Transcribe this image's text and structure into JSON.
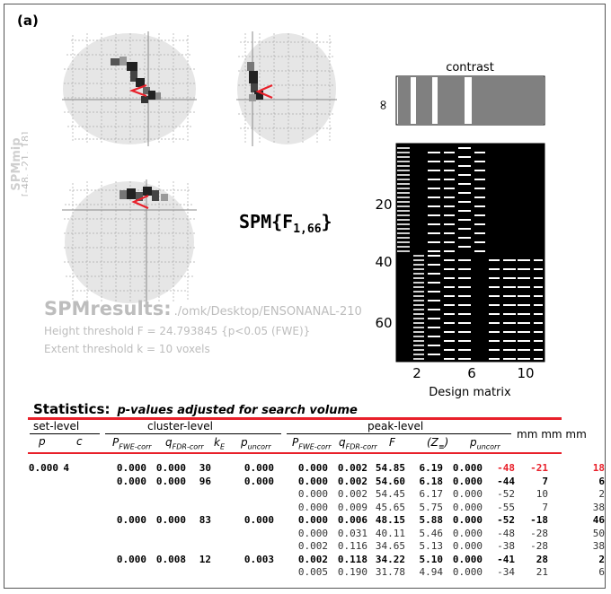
{
  "panel_label": "(a)",
  "spm_side_label": "SPMmip",
  "coord_label": "[-48, -21, 18]",
  "f_stat": {
    "prefix": "SPM{F",
    "subscript": "1,66",
    "suffix": "}"
  },
  "results": {
    "title": "SPMresults:",
    "path": "./omk/Desktop/ENSONANAL-210",
    "height_threshold": "Height threshold F = 24.793845  {p<0.05 (FWE)}",
    "extent_threshold": "Extent threshold k = 10 voxels"
  },
  "design_matrix": {
    "contrast_label": "contrast",
    "inf_label": "∞",
    "y_ticks": [
      "20",
      "40",
      "60"
    ],
    "x_ticks": [
      "2",
      "6",
      "10"
    ],
    "xlabel": "Design matrix"
  },
  "statistics": {
    "title": "Statistics:",
    "subtitle": "p-values adjusted for search volume",
    "group_headers": {
      "set": "set-level",
      "cluster": "cluster-level",
      "peak": "peak-level",
      "mm": "mm mm mm"
    },
    "col_headers": {
      "p": "p",
      "c": "c",
      "fwe": "P",
      "fwe_sub": "FWE-corr",
      "fdr": "q",
      "fdr_sub": "FDR-corr",
      "ke": "k",
      "ke_sub": "E",
      "unc": "p",
      "unc_sub": "uncorr",
      "pfwe": "P",
      "pfwe_sub": "FWE-corr",
      "pfdr": "q",
      "pfdr_sub": "FDR-corr",
      "f": "F",
      "z": "(Z",
      "z_sub": "≡",
      "z_close": ")",
      "punc": "p",
      "punc_sub": "uncorr"
    },
    "rows": [
      {
        "set_p": "0.000",
        "set_c": "4",
        "c_fwe": "0.000",
        "c_fdr": "0.000",
        "ke": "30",
        "c_unc": "0.000",
        "p_fwe": "0.000",
        "p_fdr": "0.002",
        "f": "54.85",
        "z": "6.19",
        "p_unc": "0.000",
        "x": "-48",
        "y": "-21",
        "zz": "18",
        "level": "cluster",
        "red": true
      },
      {
        "set_p": "",
        "set_c": "",
        "c_fwe": "0.000",
        "c_fdr": "0.000",
        "ke": "96",
        "c_unc": "0.000",
        "p_fwe": "0.000",
        "p_fdr": "0.002",
        "f": "54.60",
        "z": "6.18",
        "p_unc": "0.000",
        "x": "-44",
        "y": "7",
        "zz": "6",
        "level": "cluster",
        "red": false
      },
      {
        "set_p": "",
        "set_c": "",
        "c_fwe": "",
        "c_fdr": "",
        "ke": "",
        "c_unc": "",
        "p_fwe": "0.000",
        "p_fdr": "0.002",
        "f": "54.45",
        "z": "6.17",
        "p_unc": "0.000",
        "x": "-52",
        "y": "10",
        "zz": "2",
        "level": "peak",
        "red": false
      },
      {
        "set_p": "",
        "set_c": "",
        "c_fwe": "",
        "c_fdr": "",
        "ke": "",
        "c_unc": "",
        "p_fwe": "0.000",
        "p_fdr": "0.009",
        "f": "45.65",
        "z": "5.75",
        "p_unc": "0.000",
        "x": "-55",
        "y": "7",
        "zz": "38",
        "level": "peak",
        "red": false
      },
      {
        "set_p": "",
        "set_c": "",
        "c_fwe": "0.000",
        "c_fdr": "0.000",
        "ke": "83",
        "c_unc": "0.000",
        "p_fwe": "0.000",
        "p_fdr": "0.006",
        "f": "48.15",
        "z": "5.88",
        "p_unc": "0.000",
        "x": "-52",
        "y": "-18",
        "zz": "46",
        "level": "cluster",
        "red": false
      },
      {
        "set_p": "",
        "set_c": "",
        "c_fwe": "",
        "c_fdr": "",
        "ke": "",
        "c_unc": "",
        "p_fwe": "0.000",
        "p_fdr": "0.031",
        "f": "40.11",
        "z": "5.46",
        "p_unc": "0.000",
        "x": "-48",
        "y": "-28",
        "zz": "50",
        "level": "peak",
        "red": false
      },
      {
        "set_p": "",
        "set_c": "",
        "c_fwe": "",
        "c_fdr": "",
        "ke": "",
        "c_unc": "",
        "p_fwe": "0.002",
        "p_fdr": "0.116",
        "f": "34.65",
        "z": "5.13",
        "p_unc": "0.000",
        "x": "-38",
        "y": "-28",
        "zz": "38",
        "level": "peak",
        "red": false
      },
      {
        "set_p": "",
        "set_c": "",
        "c_fwe": "0.000",
        "c_fdr": "0.008",
        "ke": "12",
        "c_unc": "0.003",
        "p_fwe": "0.002",
        "p_fdr": "0.118",
        "f": "34.22",
        "z": "5.10",
        "p_unc": "0.000",
        "x": "-41",
        "y": "28",
        "zz": "2",
        "level": "cluster",
        "red": false
      },
      {
        "set_p": "",
        "set_c": "",
        "c_fwe": "",
        "c_fdr": "",
        "ke": "",
        "c_unc": "",
        "p_fwe": "0.005",
        "p_fdr": "0.190",
        "f": "31.78",
        "z": "4.94",
        "p_unc": "0.000",
        "x": "-34",
        "y": "21",
        "zz": "6",
        "level": "peak",
        "red": false
      }
    ]
  },
  "colors": {
    "red": "#e8202a",
    "grey_text": "#bdbdbd",
    "contrast_bar": "#808080",
    "glass_bg": "#e6e6e6"
  }
}
